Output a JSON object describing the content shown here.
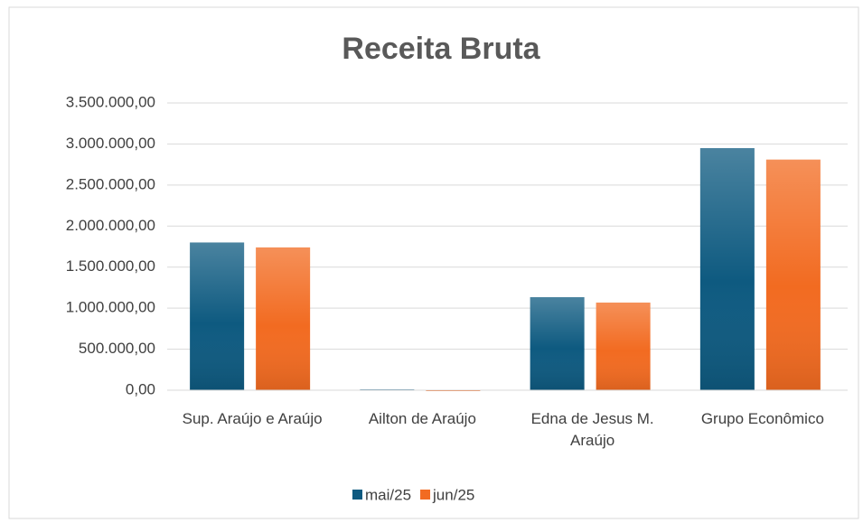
{
  "chart_data": {
    "type": "bar",
    "title": "Receita Bruta",
    "categories": [
      "Sup. Araújo e Araújo",
      "Ailton de Araújo",
      "Edna de Jesus M. Araújo",
      "Grupo Econômico"
    ],
    "series": [
      {
        "name": "mai/25",
        "color": "#0e5a80",
        "values": [
          1800000,
          10000,
          1134000,
          2950000
        ]
      },
      {
        "name": "jun/25",
        "color": "#f26b21",
        "values": [
          1740000,
          0,
          1068000,
          2810000
        ]
      }
    ],
    "ylim": [
      0,
      3500000
    ],
    "yticks": [
      {
        "value": 0,
        "label": "0,00"
      },
      {
        "value": 500000,
        "label": "500.000,00"
      },
      {
        "value": 1000000,
        "label": "1.000.000,00"
      },
      {
        "value": 1500000,
        "label": "1.500.000,00"
      },
      {
        "value": 2000000,
        "label": "2.000.000,00"
      },
      {
        "value": 2500000,
        "label": "2.500.000,00"
      },
      {
        "value": 3000000,
        "label": "3.000.000,00"
      },
      {
        "value": 3500000,
        "label": "3.500.000,00"
      }
    ],
    "grid": true,
    "legend": "bottom"
  }
}
